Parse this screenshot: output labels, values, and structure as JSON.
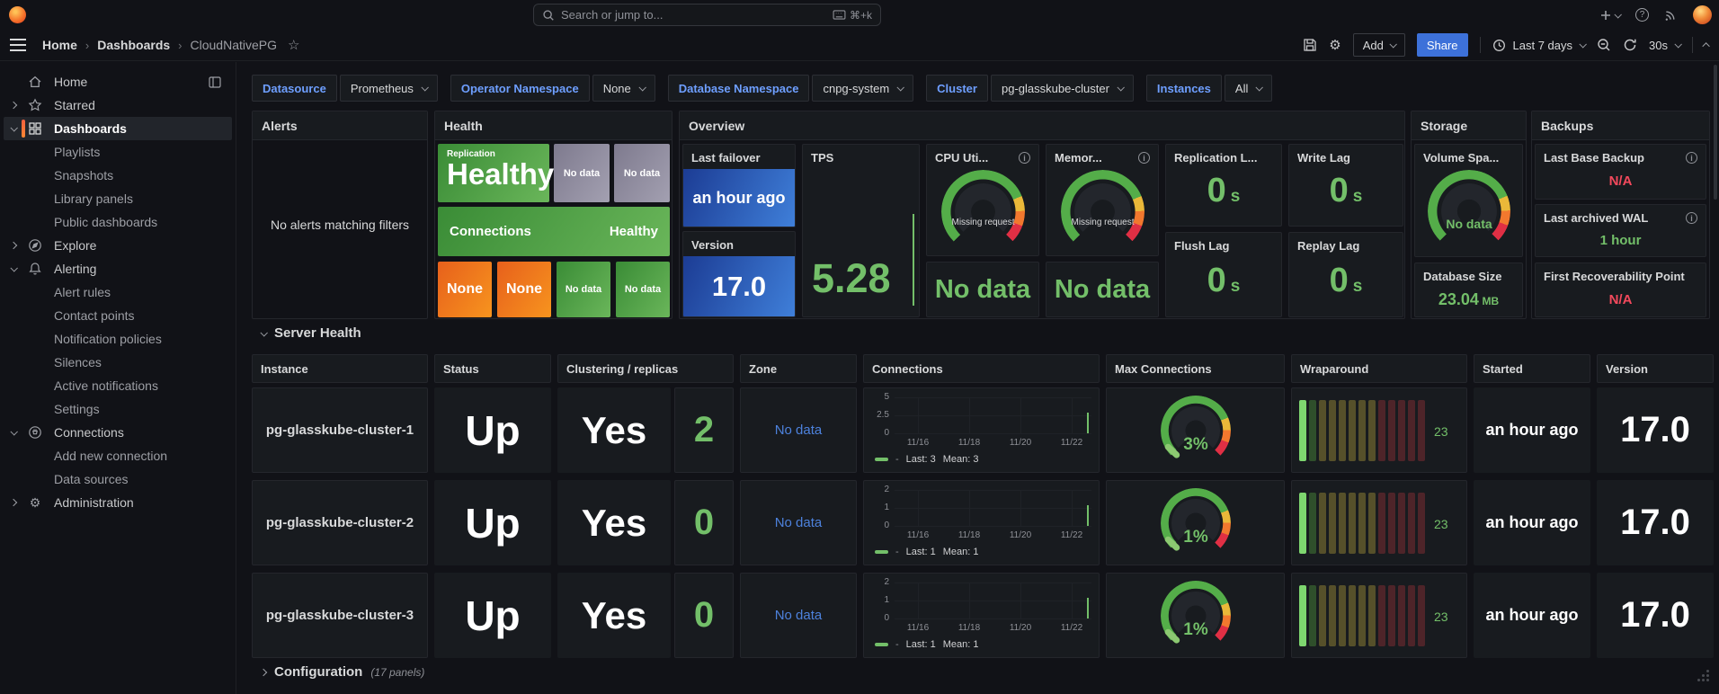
{
  "colors": {
    "green": "#73bf69",
    "red": "#f2495c",
    "link_blue": "#6e9fff",
    "zone_blue": "#4d82dd",
    "tile_green_a": "#3a8c36",
    "tile_green_b": "#6ab65a",
    "tile_orange_a": "#e7601c",
    "tile_orange_b": "#f7941e",
    "tile_blue_a": "#1c3c94",
    "tile_blue_b": "#3f7fd9",
    "tile_gray_a": "#7e7a8e",
    "tile_gray_b": "#a3a0b1",
    "share_button": "#3d71d9",
    "sidebar_active_accent": "#ff8833"
  },
  "icons": {
    "star": "☆",
    "gear": "⚙",
    "breadcrumb_separator": "›",
    "search": "magnifier",
    "command_key": "⌘+k"
  },
  "header": {
    "search_placeholder": "Search or jump to...",
    "search_shortcut": "⌘+k",
    "breadcrumb": {
      "home": "Home",
      "dashboards": "Dashboards",
      "current": "CloudNativePG"
    },
    "toolbar": {
      "add_label": "Add",
      "share_label": "Share",
      "time_range": "Last 7 days",
      "refresh_interval": "30s"
    }
  },
  "filters": [
    {
      "label": "Datasource",
      "value": "Prometheus"
    },
    {
      "label": "Operator Namespace",
      "value": "None"
    },
    {
      "label": "Database Namespace",
      "value": "cnpg-system"
    },
    {
      "label": "Cluster",
      "value": "pg-glasskube-cluster"
    },
    {
      "label": "Instances",
      "value": "All"
    }
  ],
  "sidebar": {
    "items": [
      {
        "label": "Home",
        "icon": "home",
        "level": 0,
        "chevron": "",
        "dock_icon": true
      },
      {
        "label": "Starred",
        "icon": "star",
        "level": 0,
        "chevron": "right"
      },
      {
        "label": "Dashboards",
        "icon": "grid",
        "level": 0,
        "chevron": "down",
        "active": true
      },
      {
        "label": "Playlists",
        "level": 1
      },
      {
        "label": "Snapshots",
        "level": 1
      },
      {
        "label": "Library panels",
        "level": 1
      },
      {
        "label": "Public dashboards",
        "level": 1
      },
      {
        "label": "Explore",
        "icon": "compass",
        "level": 0,
        "chevron": "right"
      },
      {
        "label": "Alerting",
        "icon": "bell",
        "level": 0,
        "chevron": "down"
      },
      {
        "label": "Alert rules",
        "level": 1
      },
      {
        "label": "Contact points",
        "level": 1
      },
      {
        "label": "Notification policies",
        "level": 1
      },
      {
        "label": "Silences",
        "level": 1
      },
      {
        "label": "Active notifications",
        "level": 1
      },
      {
        "label": "Settings",
        "level": 1
      },
      {
        "label": "Connections",
        "icon": "plug",
        "level": 0,
        "chevron": "down"
      },
      {
        "label": "Add new connection",
        "level": 1
      },
      {
        "label": "Data sources",
        "level": 1
      },
      {
        "label": "Administration",
        "icon": "gear",
        "level": 0,
        "chevron": "right"
      }
    ]
  },
  "panels": {
    "alerts": {
      "title": "Alerts",
      "empty_text": "No alerts matching filters"
    },
    "health": {
      "title": "Health",
      "replication_label": "Replication",
      "replication_value": "Healthy",
      "nodata_top_1": "No data",
      "nodata_top_2": "No data",
      "connections_label": "Connections",
      "connections_value": "Healthy",
      "none_1": "None",
      "none_2": "None",
      "nodata_bottom_1": "No data",
      "nodata_bottom_2": "No data"
    },
    "overview": {
      "title": "Overview",
      "last_failover": {
        "label": "Last failover",
        "value": "an hour ago"
      },
      "version": {
        "label": "Version",
        "value": "17.0"
      },
      "tps": {
        "label": "TPS",
        "value": "5.28"
      },
      "cpu": {
        "label": "CPU Uti...",
        "value": "Missing request"
      },
      "memory": {
        "label": "Memor...",
        "value": "Missing request"
      },
      "nodata_left": "No data",
      "nodata_right": "No data",
      "replication_lag": {
        "label": "Replication L...",
        "value": "0",
        "unit": "s"
      },
      "write_lag": {
        "label": "Write Lag",
        "value": "0",
        "unit": "s"
      },
      "flush_lag": {
        "label": "Flush Lag",
        "value": "0",
        "unit": "s"
      },
      "replay_lag": {
        "label": "Replay Lag",
        "value": "0",
        "unit": "s"
      }
    },
    "storage": {
      "title": "Storage",
      "volume": {
        "label": "Volume Spa...",
        "value": "No data"
      },
      "database_size": {
        "label": "Database Size",
        "value": "23.04",
        "unit": "MB"
      }
    },
    "backups": {
      "title": "Backups",
      "last_base_backup": {
        "label": "Last Base Backup",
        "value": "N/A"
      },
      "last_archived_wal": {
        "label": "Last archived WAL",
        "value": "1 hour"
      },
      "first_recoverability_point": {
        "label": "First Recoverability Point",
        "value": "N/A"
      }
    }
  },
  "server_health": {
    "section_title": "Server Health",
    "columns": [
      "Instance",
      "Status",
      "Clustering / replicas",
      "Zone",
      "Connections",
      "Max Connections",
      "Wraparound",
      "Started",
      "Version"
    ],
    "x_labels": [
      "11/16",
      "11/18",
      "11/20",
      "11/22"
    ],
    "wraparound_bar_colors": [
      "#7ed66f",
      "#2f4f2b",
      "#56502a",
      "#56502a",
      "#56502a",
      "#56502a",
      "#56502a",
      "#56502a",
      "#4e2429",
      "#4e2429",
      "#4e2429",
      "#4e2429",
      "#4e2429"
    ],
    "rows": [
      {
        "instance": "pg-glasskube-cluster-1",
        "status": "Up",
        "clustering": "Yes",
        "replicas": "2",
        "zone": "No data",
        "yticks": [
          "5",
          "2.5",
          "0"
        ],
        "legend_series": "-",
        "legend_last": "Last: 3",
        "legend_mean": "Mean: 3",
        "max_connections": "3%",
        "wraparound": "23",
        "started": "an hour ago",
        "version": "17.0"
      },
      {
        "instance": "pg-glasskube-cluster-2",
        "status": "Up",
        "clustering": "Yes",
        "replicas": "0",
        "zone": "No data",
        "yticks": [
          "2",
          "1",
          "0"
        ],
        "legend_series": "-",
        "legend_last": "Last: 1",
        "legend_mean": "Mean: 1",
        "max_connections": "1%",
        "wraparound": "23",
        "started": "an hour ago",
        "version": "17.0"
      },
      {
        "instance": "pg-glasskube-cluster-3",
        "status": "Up",
        "clustering": "Yes",
        "replicas": "0",
        "zone": "No data",
        "yticks": [
          "2",
          "1",
          "0"
        ],
        "legend_series": "-",
        "legend_last": "Last: 1",
        "legend_mean": "Mean: 1",
        "max_connections": "1%",
        "wraparound": "23",
        "started": "an hour ago",
        "version": "17.0"
      }
    ]
  },
  "configuration": {
    "title": "Configuration",
    "panel_count": "(17 panels)"
  },
  "chart_data": [
    {
      "type": "line",
      "title": "Connections pg-glasskube-cluster-1",
      "x": [
        "11/16",
        "11/18",
        "11/20",
        "11/22"
      ],
      "series": [
        {
          "name": "-",
          "values_note": "single point at right edge",
          "last": 3,
          "mean": 3
        }
      ],
      "ylim": [
        0,
        5
      ],
      "yticks": [
        0,
        2.5,
        5
      ],
      "legend_position": "bottom",
      "grid": true
    },
    {
      "type": "line",
      "title": "Connections pg-glasskube-cluster-2",
      "x": [
        "11/16",
        "11/18",
        "11/20",
        "11/22"
      ],
      "series": [
        {
          "name": "-",
          "values_note": "single point at right edge",
          "last": 1,
          "mean": 1
        }
      ],
      "ylim": [
        0,
        2
      ],
      "yticks": [
        0,
        1,
        2
      ],
      "legend_position": "bottom",
      "grid": true
    },
    {
      "type": "line",
      "title": "Connections pg-glasskube-cluster-3",
      "x": [
        "11/16",
        "11/18",
        "11/20",
        "11/22"
      ],
      "series": [
        {
          "name": "-",
          "values_note": "single point at right edge",
          "last": 1,
          "mean": 1
        }
      ],
      "ylim": [
        0,
        2
      ],
      "yticks": [
        0,
        1,
        2
      ],
      "legend_position": "bottom",
      "grid": true
    }
  ]
}
